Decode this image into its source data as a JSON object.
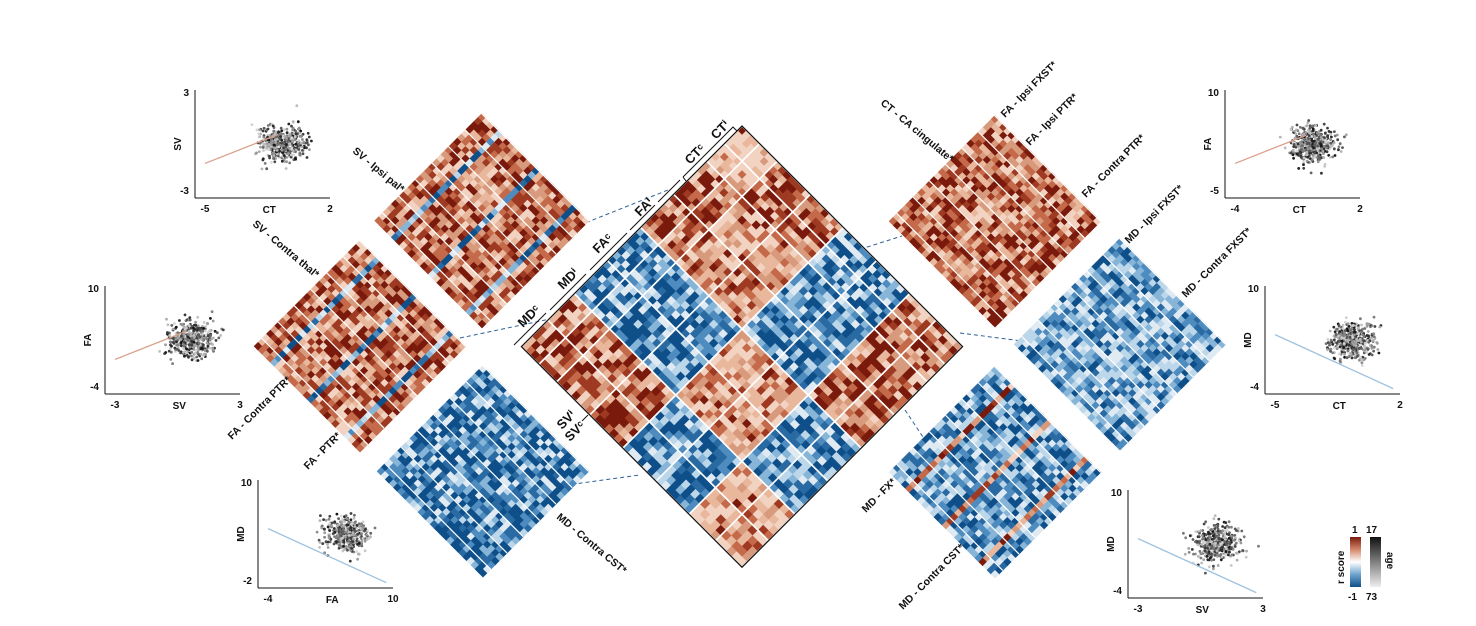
{
  "colors": {
    "positive": "#7a1a0c",
    "positive_mid": "#c46a4a",
    "positive_light": "#e9b79c",
    "negative": "#0e4f8a",
    "negative_mid": "#4e8cc0",
    "negative_light": "#bcd7ea",
    "white": "#ffffff",
    "age_dark": "#111111",
    "age_light": "#e8e8e8"
  },
  "block_labels": {
    "ct_c": "CTᶜ",
    "ct_i": "CTⁱ",
    "fa_i": "FAⁱ",
    "fa_c": "FAᶜ",
    "md_i": "MDⁱ",
    "md_c": "MDᶜ",
    "sv_i": "SVⁱ",
    "sv_c": "SVᶜ"
  },
  "panel_labels": {
    "sv_ipsi_pal": "SV - Ipsi pal*",
    "sv_contra_thal": "SV - Contra thal*",
    "fa_contra_ptr_left": "FA - Contra PTR*",
    "fa_ptr": "FA - PTR*",
    "md_contra_cst_left": "MD - Contra CST*",
    "ct_ca_cingulate": "CT - CA cingulate*",
    "fa_ipsi_fxst": "FA - Ipsi FXST*",
    "fa_ipsi_ptr": "FA - Ipsi PTR*",
    "fa_contra_ptr_right": "FA - Contra PTR*",
    "md_ipsi_fxst": "MD - Ipsi FXST*",
    "md_contra_fxst": "MD - Contra FXST*",
    "md_fx": "MD - FX*",
    "md_contra_cst_right": "MD - Contra CST*"
  },
  "scatter_plots": [
    {
      "xlabel": "CT",
      "ylabel": "SV",
      "xticks": [
        "-5",
        "2"
      ],
      "yticks": [
        "3",
        "-3"
      ],
      "trend": "positive"
    },
    {
      "xlabel": "SV",
      "ylabel": "FA",
      "xticks": [
        "-3",
        "3"
      ],
      "yticks": [
        "10",
        "-4"
      ],
      "trend": "positive"
    },
    {
      "xlabel": "FA",
      "ylabel": "MD",
      "xticks": [
        "-4",
        "10"
      ],
      "yticks": [
        "10",
        "-2"
      ],
      "trend": "negative"
    },
    {
      "xlabel": "CT",
      "ylabel": "FA",
      "xticks": [
        "-4",
        "2"
      ],
      "yticks": [
        "10",
        "-5"
      ],
      "trend": "positive"
    },
    {
      "xlabel": "CT",
      "ylabel": "MD",
      "xticks": [
        "-5",
        "2"
      ],
      "yticks": [
        "10",
        "-4"
      ],
      "trend": "negative"
    },
    {
      "xlabel": "SV",
      "ylabel": "MD",
      "xticks": [
        "-3",
        "3"
      ],
      "yticks": [
        "10",
        "-4"
      ],
      "trend": "negative"
    }
  ],
  "colorbars": {
    "r_score": {
      "label": "r score",
      "max": "1",
      "min": "-1"
    },
    "age": {
      "label": "age",
      "max": "17",
      "min": "73"
    }
  }
}
